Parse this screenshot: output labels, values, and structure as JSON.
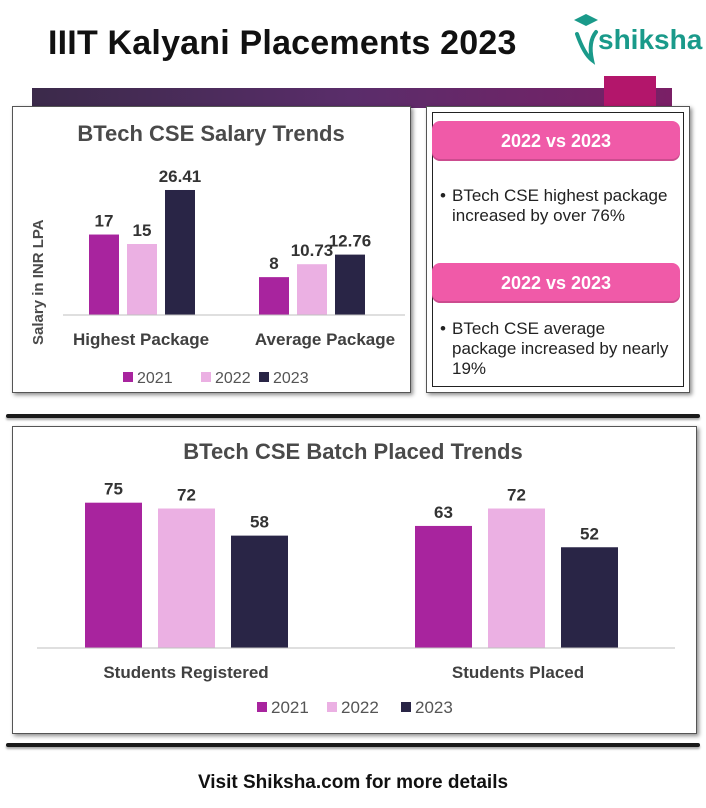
{
  "page": {
    "title": "IIIT Kalyani Placements 2023",
    "brand": "shiksha",
    "footer": "Visit Shiksha.com for more details"
  },
  "colors": {
    "y2021": "#a8249e",
    "y2022": "#ebb0e3",
    "y2023": "#292546",
    "pill": "#f05aa8",
    "brand": "#1a9a8a",
    "banner": "#5a2d6a"
  },
  "highlights": [
    {
      "label": "2022 vs 2023",
      "text": "BTech CSE highest package increased by over 76%"
    },
    {
      "label": "2022 vs 2023",
      "text": "BTech CSE average package increased by nearly 19%"
    }
  ],
  "chart_data": [
    {
      "type": "bar",
      "title": "BTech CSE Salary Trends",
      "ylabel": "Salary in INR LPA",
      "xlabel": "",
      "categories": [
        "Highest Package",
        "Average Package"
      ],
      "series": [
        {
          "name": "2021",
          "values": [
            17,
            8
          ]
        },
        {
          "name": "2022",
          "values": [
            15,
            10.73
          ]
        },
        {
          "name": "2023",
          "values": [
            26.41,
            12.76
          ]
        }
      ],
      "ylim": [
        0,
        30
      ],
      "grid": false,
      "legend": "bottom"
    },
    {
      "type": "bar",
      "title": "BTech CSE Batch Placed Trends",
      "ylabel": "",
      "xlabel": "",
      "categories": [
        "Students Registered",
        "Students Placed"
      ],
      "series": [
        {
          "name": "2021",
          "values": [
            75,
            63
          ]
        },
        {
          "name": "2022",
          "values": [
            72,
            72
          ]
        },
        {
          "name": "2023",
          "values": [
            58,
            52
          ]
        }
      ],
      "ylim": [
        0,
        80
      ],
      "grid": false,
      "legend": "bottom"
    }
  ]
}
